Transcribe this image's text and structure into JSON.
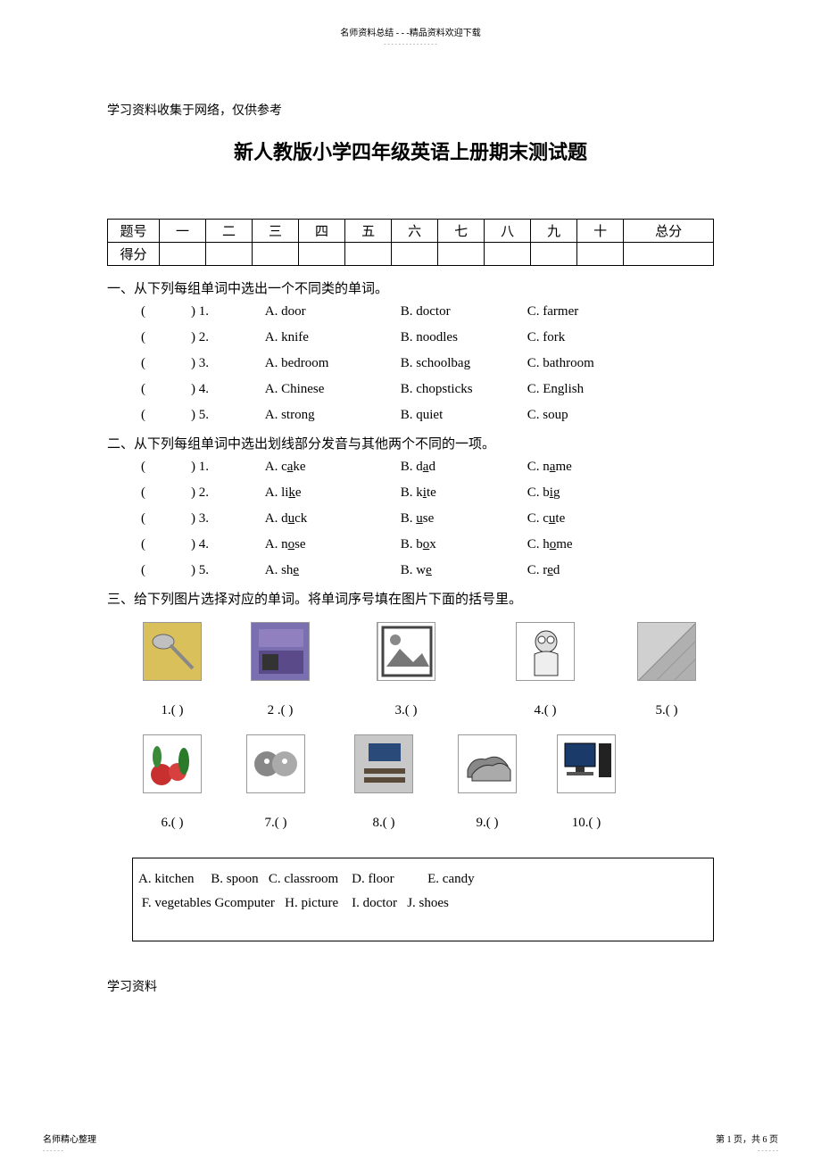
{
  "header": {
    "text": "名师资料总结 - - -精品资料欢迎下载",
    "sub": "- - - - - - - - - - - - - - -"
  },
  "note": "学习资料收集于网络，仅供参考",
  "title": "新人教版小学四年级英语上册期末测试题",
  "scoreTable": {
    "row1": [
      "题号",
      "一",
      "二",
      "三",
      "四",
      "五",
      "六",
      "七",
      "八",
      "九",
      "十",
      "总分"
    ],
    "row2": "得分"
  },
  "section1": {
    "heading": "一、从下列每组单词中选出一个不同类的单词。",
    "questions": [
      {
        "n": "1.",
        "a": "A. door",
        "b": "B. doctor",
        "c": "C. farmer"
      },
      {
        "n": "2.",
        "a": "A. knife",
        "b": "B. noodles",
        "c": "C. fork"
      },
      {
        "n": "3.",
        "a": "A. bedroom",
        "b": "B. schoolbag",
        "c": "C. bathroom"
      },
      {
        "n": "4.",
        "a": "A. Chinese",
        "b": "B. chopsticks",
        "c": "C. English"
      },
      {
        "n": "5.",
        "a": "A. strong",
        "b": "B. quiet",
        "c": "C. soup"
      }
    ]
  },
  "section2": {
    "heading": "二、从下列每组单词中选出划线部分发音与其他两个不同的一项。",
    "questions": [
      {
        "n": "1.",
        "aPre": "A. c",
        "aU": "a",
        "aPost": "ke",
        "bPre": "B. d",
        "bU": "a",
        "bPost": "d",
        "cPre": "C. n",
        "cU": "a",
        "cPost": "me"
      },
      {
        "n": "2.",
        "aPre": "A. li",
        "aU": "k",
        "aPost": "e",
        "bPre": "B. k",
        "bU": "i",
        "bPost": "te",
        "cPre": "C. b",
        "cU": "i",
        "cPost": "g"
      },
      {
        "n": "3.",
        "aPre": "A. d",
        "aU": "u",
        "aPost": "ck",
        "bPre": "B. ",
        "bU": "u",
        "bPost": "se",
        "cPre": "C. c",
        "cU": "u",
        "cPost": "te"
      },
      {
        "n": "4.",
        "aPre": "A. n",
        "aU": "o",
        "aPost": "se",
        "bPre": "B. b",
        "bU": "o",
        "bPost": "x",
        "cPre": "C. h",
        "cU": "o",
        "cPost": "me"
      },
      {
        "n": "5.",
        "aPre": "A. sh",
        "aU": "e",
        "aPost": "",
        "bPre": "B. w",
        "bU": "e",
        "bPost": "",
        "cPre": "C. r",
        "cU": "e",
        "cPost": "d"
      }
    ]
  },
  "section3": {
    "heading": "三、给下列图片选择对应的单词。将单词序号填在图片下面的括号里。",
    "row1Labels": [
      "1.(        )",
      "2 .(      )",
      "3.(         )",
      "4.(        )",
      "5.(        )"
    ],
    "row2Labels": [
      "6.(      )",
      "7.(      )",
      "8.(      )",
      "9.(      )",
      "10.(      )"
    ],
    "row1Images": [
      {
        "bg": "#d9c05a",
        "svg": "spoon"
      },
      {
        "bg": "#7a6fb0",
        "svg": "kitchen"
      },
      {
        "bg": "#c8c8c8",
        "svg": "picture"
      },
      {
        "bg": "#ffffff",
        "svg": "doctor"
      },
      {
        "bg": "#d0d0d0",
        "svg": "floor"
      }
    ],
    "row2Images": [
      {
        "bg": "#2a5a2a",
        "svg": "vegetables"
      },
      {
        "bg": "#e8e8e8",
        "svg": "candy"
      },
      {
        "bg": "#c8c8c8",
        "svg": "classroom"
      },
      {
        "bg": "#ffffff",
        "svg": "shoes"
      },
      {
        "bg": "#ffffff",
        "svg": "computer"
      }
    ],
    "answerBox": {
      "line1": "A. kitchen     B. spoon   C. classroom    D. floor          E. candy",
      "line2": " F. vegetables Gcomputer   H. picture    I. doctor   J. shoes"
    }
  },
  "bottomNote": "学习资料",
  "footer": {
    "left": "名师精心整理",
    "leftSub": "- - - - - -",
    "right": "第 1 页，共 6 页",
    "rightSub": "- - - - - -"
  }
}
